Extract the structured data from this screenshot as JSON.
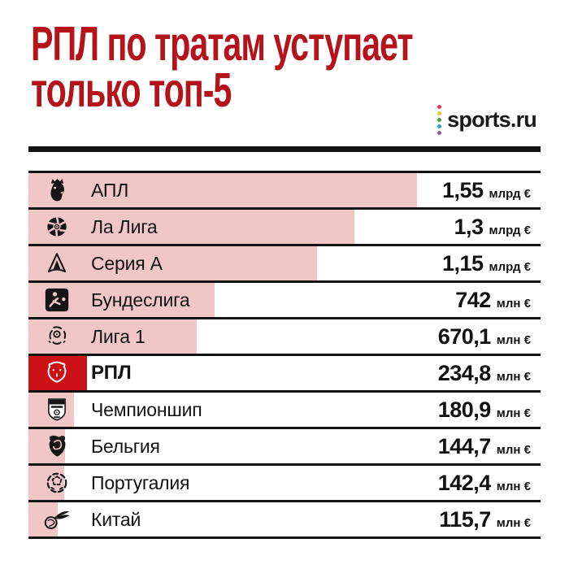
{
  "header": {
    "title_line1": "РПЛ по тратам уступает",
    "title_line2": "только топ-5",
    "title_color": "#b5131b",
    "brand": {
      "name": "sports.ru",
      "dot_colors": [
        "#e8384f",
        "#f2c318",
        "#3fa535",
        "#2d9fd8",
        "#9a55a5"
      ]
    }
  },
  "chart_data": {
    "type": "bar",
    "orientation": "horizontal",
    "title": "РПЛ по тратам уступает только топ-5",
    "x_max_meur": 1550,
    "max_bar_fraction": 0.759,
    "bar_color": "#f1c6c6",
    "highlight_bar_color": "#cb1016",
    "grid": false,
    "legend": "none",
    "categories": [
      "АПЛ",
      "Ла Лига",
      "Серия А",
      "Бундеслига",
      "Лига 1",
      "РПЛ",
      "Чемпионшип",
      "Бельгия",
      "Португалия",
      "Китай"
    ],
    "values_meur": [
      1550,
      1300,
      1150,
      742,
      670.1,
      234.8,
      180.9,
      144.7,
      142.4,
      115.7
    ],
    "value_labels": [
      "1,55 млрд €",
      "1,3 млрд €",
      "1,15 млрд €",
      "742 млн €",
      "670,1 млн €",
      "234,8 млн €",
      "180,9 млн €",
      "144,7 млн €",
      "142,4 млн €",
      "115,7 млн €"
    ],
    "rows": [
      {
        "label": "АПЛ",
        "icon": "premier-league",
        "value_meur": 1550,
        "value_display": "1,55",
        "unit": "млрд €",
        "highlight": false
      },
      {
        "label": "Ла Лига",
        "icon": "la-liga",
        "value_meur": 1300,
        "value_display": "1,3",
        "unit": "млрд €",
        "highlight": false
      },
      {
        "label": "Серия А",
        "icon": "serie-a",
        "value_meur": 1150,
        "value_display": "1,15",
        "unit": "млрд €",
        "highlight": false
      },
      {
        "label": "Бундеслига",
        "icon": "bundesliga",
        "value_meur": 742,
        "value_display": "742",
        "unit": "млн €",
        "highlight": false
      },
      {
        "label": "Лига 1",
        "icon": "ligue-1",
        "value_meur": 670.1,
        "value_display": "670,1",
        "unit": "млн €",
        "highlight": false
      },
      {
        "label": "РПЛ",
        "icon": "rpl-bear",
        "value_meur": 234.8,
        "value_display": "234,8",
        "unit": "млн €",
        "highlight": true
      },
      {
        "label": "Чемпионшип",
        "icon": "championship",
        "value_meur": 180.9,
        "value_display": "180,9",
        "unit": "млн €",
        "highlight": false
      },
      {
        "label": "Бельгия",
        "icon": "belgium-league",
        "value_meur": 144.7,
        "value_display": "144,7",
        "unit": "млн €",
        "highlight": false
      },
      {
        "label": "Португалия",
        "icon": "portugal-league",
        "value_meur": 142.4,
        "value_display": "142,4",
        "unit": "млн €",
        "highlight": false
      },
      {
        "label": "Китай",
        "icon": "china-league",
        "value_meur": 115.7,
        "value_display": "115,7",
        "unit": "млн €",
        "highlight": false
      }
    ]
  }
}
